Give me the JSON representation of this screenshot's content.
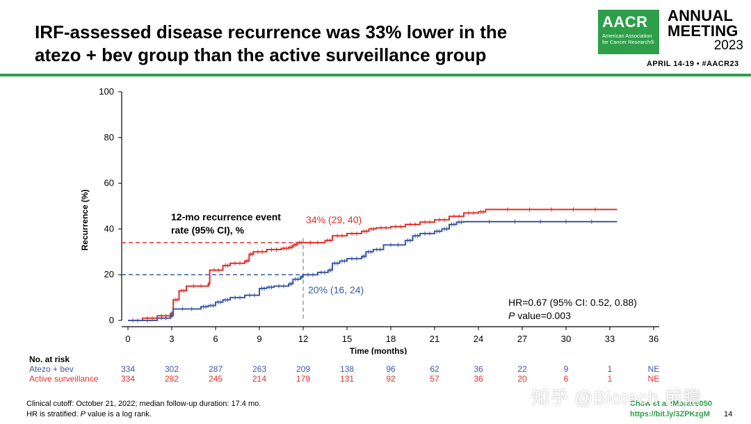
{
  "header": {
    "title_line1": "IRF-assessed disease recurrence was 33% lower in the",
    "title_line2": "atezo + bev group than the active surveillance group",
    "logo_mark": "AACR",
    "logo_sub": "American Association for Cancer Research®",
    "meeting_line1": "ANNUAL",
    "meeting_line2": "MEETING",
    "meeting_year": "2023",
    "dates": "APRIL 14-19 • #AACR23"
  },
  "colors": {
    "accent": "#2e9e4a",
    "atezo": "#3b58a6",
    "surveillance": "#e0302a"
  },
  "chart_data": {
    "type": "line",
    "title": "",
    "xlabel": "Time (months)",
    "ylabel": "Recurrence (%)",
    "xlim": [
      0,
      36
    ],
    "ylim": [
      0,
      100
    ],
    "xticks": [
      0,
      3,
      6,
      9,
      12,
      15,
      18,
      21,
      24,
      27,
      30,
      33,
      36
    ],
    "yticks": [
      0,
      20,
      40,
      60,
      80,
      100
    ],
    "series": [
      {
        "name": "Active surveillance",
        "color": "#e0302a",
        "x": [
          0,
          1,
          2,
          2.9,
          3.1,
          3.5,
          4,
          5.5,
          5.6,
          6.5,
          7,
          8,
          8.3,
          8.6,
          9.5,
          10.5,
          11,
          11.3,
          11.6,
          12,
          13.5,
          14,
          15,
          16,
          16.5,
          17,
          18,
          19,
          20,
          21,
          22,
          23,
          24,
          24.5,
          33.5
        ],
        "y": [
          0,
          1,
          2,
          3,
          9,
          13,
          15,
          16,
          22,
          24,
          25,
          26,
          29,
          30,
          31,
          31.5,
          32,
          33,
          34,
          34,
          35,
          37,
          38,
          39,
          40,
          40.5,
          41,
          42,
          43,
          44,
          45.5,
          47,
          47.5,
          48.5,
          48.5
        ]
      },
      {
        "name": "Atezo + bev",
        "color": "#3b58a6",
        "x": [
          0,
          2,
          2.9,
          3.1,
          5,
          5.5,
          6,
          6.5,
          7,
          8,
          9,
          9.5,
          10,
          11,
          11.3,
          11.8,
          12,
          13,
          13.7,
          14,
          14.5,
          15,
          16,
          16.3,
          16.8,
          17.5,
          19,
          19.5,
          20,
          21,
          21.5,
          22,
          22.5,
          23,
          33.5
        ],
        "y": [
          0,
          1,
          2,
          5,
          6,
          6.5,
          8,
          9,
          10,
          11,
          14,
          14.5,
          15,
          16,
          18,
          19,
          20,
          21,
          22,
          25,
          26,
          27,
          28,
          30,
          31,
          33,
          35,
          37,
          38,
          39,
          40,
          42,
          43,
          43.2,
          43.2
        ]
      }
    ],
    "reference_lines": [
      {
        "name": "Active surveillance 12-mo",
        "y": 34,
        "color": "#e0302a"
      },
      {
        "name": "Atezo + bev 12-mo",
        "y": 20,
        "color": "#3b58a6"
      },
      {
        "name": "12-month marker",
        "x": 12,
        "color": "#9a9a9a"
      }
    ],
    "annotations": {
      "event_rate_label_line1": "12-mo recurrence event",
      "event_rate_label_line2": "rate (95% CI), %",
      "surveillance_rate": "34% (29, 40)",
      "atezo_rate": "20% (16, 24)",
      "hr": "HR=0.67 (95% CI: 0.52, 0.88)",
      "p_value_prefix": "P",
      "p_value_rest": " value=0.003"
    },
    "at_risk": {
      "title": "No. at risk",
      "rows": [
        {
          "name": "Atezo + bev",
          "color": "#3b58a6",
          "values": [
            "334",
            "302",
            "287",
            "263",
            "209",
            "138",
            "96",
            "62",
            "36",
            "22",
            "9",
            "1",
            "NE"
          ]
        },
        {
          "name": "Active surveillance",
          "color": "#e0302a",
          "values": [
            "334",
            "282",
            "245",
            "214",
            "179",
            "131",
            "92",
            "57",
            "36",
            "20",
            "6",
            "1",
            "NE"
          ]
        }
      ]
    }
  },
  "footer": {
    "note_line1": "Clinical cutoff: October 21, 2022; median follow-up duration: 17.4 mo.",
    "note_line2_a": "HR is stratified. ",
    "note_line2_p": "P",
    "note_line2_b": " value is a log rank.",
    "citation_line1": "Chow et al IMbrave050",
    "citation_line2": "https://bit.ly/3ZPKzgM",
    "page_number": "14",
    "watermark": "知乎 @Biotech 前瞻"
  }
}
